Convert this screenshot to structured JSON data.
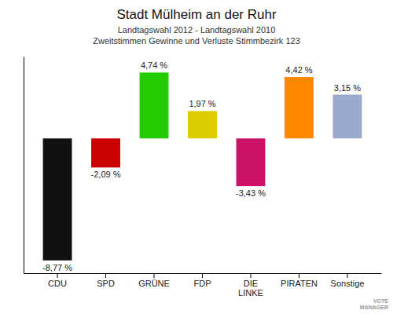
{
  "chart_data": {
    "type": "bar",
    "title": "Stadt Mülheim an der Ruhr",
    "subtitle": [
      "Landtagswahl 2012 - Landtagswahl 2010",
      "Zweitstimmen Gewinne und Verluste Stimmbezirk 123"
    ],
    "categories": [
      "CDU",
      "SPD",
      "GRÜNE",
      "FDP",
      "DIE\nLINKE",
      "PIRATEN",
      "Sonstige"
    ],
    "values": [
      -8.77,
      -2.09,
      4.74,
      1.97,
      -3.43,
      4.42,
      3.15
    ],
    "value_labels": [
      "-8,77 %",
      "-2,09 %",
      "4,74 %",
      "1,97 %",
      "-3,43 %",
      "4,42 %",
      "3,15 %"
    ],
    "colors": [
      "#111111",
      "#cc0000",
      "#22cc00",
      "#ddcc00",
      "#cc1166",
      "#ff8800",
      "#99aace"
    ],
    "ylim": [
      -9.69,
      5.89
    ],
    "data_labels": true,
    "tick_labels": "x",
    "grid": false,
    "annotations": [
      "VOTE\nMANAGER"
    ]
  }
}
